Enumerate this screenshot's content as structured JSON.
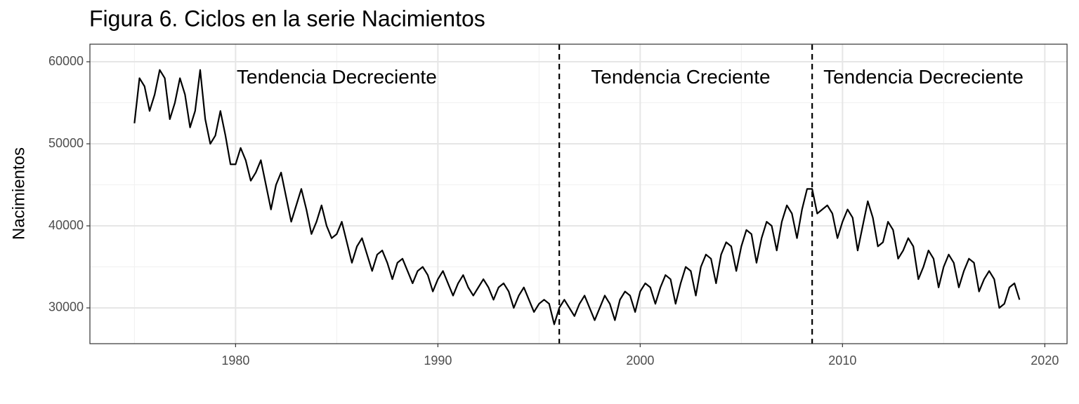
{
  "chart_data": {
    "type": "line",
    "title": "Figura 6. Ciclos en la serie Nacimientos",
    "y_label": "Nacimientos",
    "x": [
      1975,
      1975.25,
      1975.5,
      1975.75,
      1976,
      1976.25,
      1976.5,
      1976.75,
      1977,
      1977.25,
      1977.5,
      1977.75,
      1978,
      1978.25,
      1978.5,
      1978.75,
      1979,
      1979.25,
      1979.5,
      1979.75,
      1980,
      1980.25,
      1980.5,
      1980.75,
      1981,
      1981.25,
      1981.5,
      1981.75,
      1982,
      1982.25,
      1982.5,
      1982.75,
      1983,
      1983.25,
      1983.5,
      1983.75,
      1984,
      1984.25,
      1984.5,
      1984.75,
      1985,
      1985.25,
      1985.5,
      1985.75,
      1986,
      1986.25,
      1986.5,
      1986.75,
      1987,
      1987.25,
      1987.5,
      1987.75,
      1988,
      1988.25,
      1988.5,
      1988.75,
      1989,
      1989.25,
      1989.5,
      1989.75,
      1990,
      1990.25,
      1990.5,
      1990.75,
      1991,
      1991.25,
      1991.5,
      1991.75,
      1992,
      1992.25,
      1992.5,
      1992.75,
      1993,
      1993.25,
      1993.5,
      1993.75,
      1994,
      1994.25,
      1994.5,
      1994.75,
      1995,
      1995.25,
      1995.5,
      1995.75,
      1996,
      1996.25,
      1996.5,
      1996.75,
      1997,
      1997.25,
      1997.5,
      1997.75,
      1998,
      1998.25,
      1998.5,
      1998.75,
      1999,
      1999.25,
      1999.5,
      1999.75,
      2000,
      2000.25,
      2000.5,
      2000.75,
      2001,
      2001.25,
      2001.5,
      2001.75,
      2002,
      2002.25,
      2002.5,
      2002.75,
      2003,
      2003.25,
      2003.5,
      2003.75,
      2004,
      2004.25,
      2004.5,
      2004.75,
      2005,
      2005.25,
      2005.5,
      2005.75,
      2006,
      2006.25,
      2006.5,
      2006.75,
      2007,
      2007.25,
      2007.5,
      2007.75,
      2008,
      2008.25,
      2008.5,
      2008.75,
      2009,
      2009.25,
      2009.5,
      2009.75,
      2010,
      2010.25,
      2010.5,
      2010.75,
      2011,
      2011.25,
      2011.5,
      2011.75,
      2012,
      2012.25,
      2012.5,
      2012.75,
      2013,
      2013.25,
      2013.5,
      2013.75,
      2014,
      2014.25,
      2014.5,
      2014.75,
      2015,
      2015.25,
      2015.5,
      2015.75,
      2016,
      2016.25,
      2016.5,
      2016.75,
      2017,
      2017.25,
      2017.5,
      2017.75,
      2018,
      2018.25,
      2018.5,
      2018.75
    ],
    "series": [
      {
        "color": "#000000",
        "values": [
          52500,
          58000,
          57000,
          54000,
          56000,
          59000,
          58000,
          53000,
          55000,
          58000,
          56000,
          52000,
          54000,
          59000,
          53000,
          50000,
          51000,
          54000,
          51000,
          47500,
          47500,
          49500,
          48000,
          45500,
          46500,
          48000,
          45000,
          42000,
          45000,
          46500,
          43500,
          40500,
          42500,
          44500,
          42000,
          39000,
          40500,
          42500,
          40000,
          38500,
          39000,
          40500,
          38000,
          35500,
          37500,
          38500,
          36500,
          34500,
          36500,
          37000,
          35500,
          33500,
          35500,
          36000,
          34500,
          33000,
          34500,
          35000,
          34000,
          32000,
          33500,
          34500,
          33000,
          31500,
          33000,
          34000,
          32500,
          31500,
          32500,
          33500,
          32500,
          31000,
          32500,
          33000,
          32000,
          30000,
          31500,
          32500,
          31000,
          29500,
          30500,
          31000,
          30500,
          28000,
          30000,
          31000,
          30000,
          29000,
          30500,
          31500,
          30000,
          28500,
          30000,
          31500,
          30500,
          28500,
          31000,
          32000,
          31500,
          29500,
          32000,
          33000,
          32500,
          30500,
          32500,
          34000,
          33500,
          30500,
          33000,
          35000,
          34500,
          31500,
          35000,
          36500,
          36000,
          33000,
          36500,
          38000,
          37500,
          34500,
          37500,
          39500,
          39000,
          35500,
          38500,
          40500,
          40000,
          37000,
          40500,
          42500,
          41500,
          38500,
          42000,
          44500,
          44500,
          41500,
          42000,
          42500,
          41500,
          38500,
          40500,
          42000,
          41000,
          37000,
          40000,
          43000,
          41000,
          37500,
          38000,
          40500,
          39500,
          36000,
          37000,
          38500,
          37500,
          33500,
          35000,
          37000,
          36000,
          32500,
          35000,
          36500,
          35500,
          32500,
          34500,
          36000,
          35500,
          32000,
          33500,
          34500,
          33500,
          30000,
          30500,
          32500,
          33000,
          31000
        ]
      }
    ],
    "xlim": [
      1972.8,
      2021.1
    ],
    "xticks": [
      1980,
      1990,
      2000,
      2010,
      2020
    ],
    "ylim": [
      25640,
      62140
    ],
    "yticks": [
      30000,
      40000,
      50000,
      60000
    ],
    "grid": true,
    "vlines": [
      1996.0,
      2008.5
    ],
    "annotations": [
      {
        "text": "Tendencia Decreciente",
        "x": 1985.0,
        "y": 58000
      },
      {
        "text": "Tendencia Creciente",
        "x": 2002.0,
        "y": 58000
      },
      {
        "text": "Tendencia Decreciente",
        "x": 2014.0,
        "y": 58000
      }
    ]
  }
}
